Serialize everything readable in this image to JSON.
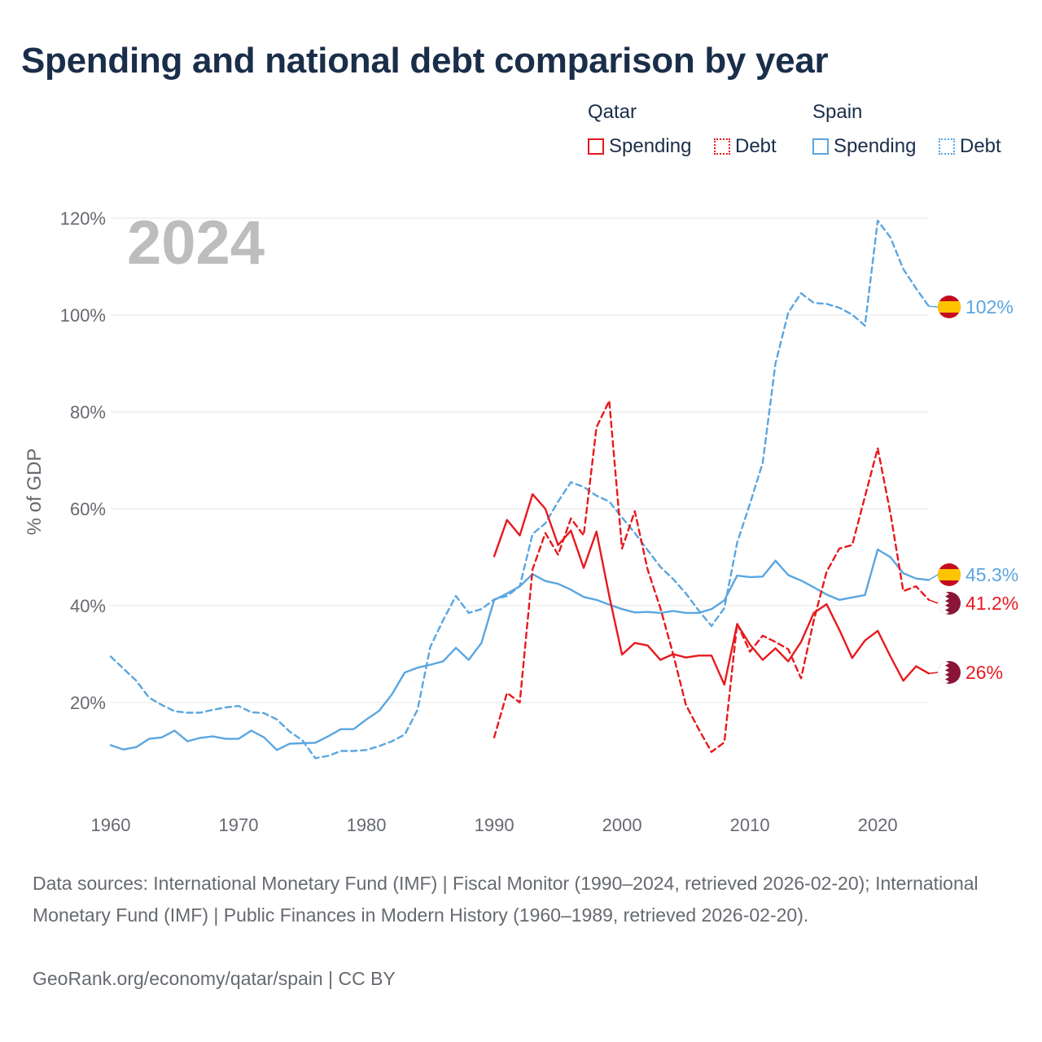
{
  "title": "Spending and national debt comparison by year",
  "legend": {
    "groups": [
      {
        "country": "Qatar",
        "color": "#e8191e",
        "items": [
          {
            "label": "Spending",
            "style": "solid"
          },
          {
            "label": "Debt",
            "style": "dotted"
          }
        ]
      },
      {
        "country": "Spain",
        "color": "#5aa6e0",
        "items": [
          {
            "label": "Spending",
            "style": "solid"
          },
          {
            "label": "Debt",
            "style": "dotted"
          }
        ]
      }
    ]
  },
  "footer": {
    "source": "Data sources: International Monetary Fund (IMF) | Fiscal Monitor (1990–2024, retrieved 2026-02-20); International Monetary Fund (IMF) | Public Finances in Modern History (1960–1989, retrieved 2026-02-20).",
    "credit": "GeoRank.org/economy/qatar/spain | CC BY"
  },
  "chart_data": {
    "type": "line",
    "title": "Spending and national debt comparison by year",
    "year_label": "2024",
    "xlabel": "",
    "ylabel": "% of GDP",
    "xlim": [
      1960,
      2024
    ],
    "ylim": [
      0,
      120
    ],
    "x_ticks": [
      1960,
      1970,
      1980,
      1990,
      2000,
      2010,
      2020
    ],
    "y_ticks": [
      20,
      40,
      60,
      80,
      100,
      120
    ],
    "y_tick_labels": [
      "20%",
      "40%",
      "60%",
      "80%",
      "100%",
      "120%"
    ],
    "grid": true,
    "series": [
      {
        "name": "Spain Debt",
        "country": "Spain",
        "metric": "Debt",
        "color": "#5aa6e0",
        "dash": "dashed",
        "end_label": "102%",
        "flag": "spain",
        "x": [
          1960,
          1961,
          1962,
          1963,
          1964,
          1965,
          1966,
          1967,
          1968,
          1969,
          1970,
          1971,
          1972,
          1973,
          1974,
          1975,
          1976,
          1977,
          1978,
          1979,
          1980,
          1981,
          1982,
          1983,
          1984,
          1985,
          1986,
          1987,
          1988,
          1989,
          1990,
          1991,
          1992,
          1993,
          1994,
          1995,
          1996,
          1997,
          1998,
          1999,
          2000,
          2001,
          2002,
          2003,
          2004,
          2005,
          2006,
          2007,
          2008,
          2009,
          2010,
          2011,
          2012,
          2013,
          2014,
          2015,
          2016,
          2017,
          2018,
          2019,
          2020,
          2021,
          2022,
          2023,
          2024
        ],
        "values": [
          29.5,
          27,
          24.5,
          21,
          19.5,
          18.2,
          17.9,
          17.9,
          18.5,
          19,
          19.3,
          18,
          17.8,
          16.5,
          14,
          12.2,
          8.5,
          9,
          10,
          10,
          10.2,
          11,
          12,
          13.4,
          18.5,
          31.5,
          37,
          42,
          38.5,
          39.3,
          41.3,
          42,
          44,
          54.8,
          57,
          61.5,
          65.5,
          64.5,
          62.7,
          61.5,
          58.2,
          55,
          51.5,
          48,
          45.5,
          42.5,
          39,
          35.8,
          39.5,
          53,
          61,
          69.5,
          90,
          100.5,
          104.5,
          102.5,
          102.3,
          101.5,
          100.1,
          97.8,
          119.5,
          116,
          109.5,
          105.5,
          101.8
        ]
      },
      {
        "name": "Spain Spending",
        "country": "Spain",
        "metric": "Spending",
        "color": "#5aa6e0",
        "dash": "solid",
        "end_label": "45.3%",
        "flag": "spain",
        "x": [
          1960,
          1961,
          1962,
          1963,
          1964,
          1965,
          1966,
          1967,
          1968,
          1969,
          1970,
          1971,
          1972,
          1973,
          1974,
          1975,
          1976,
          1977,
          1978,
          1979,
          1980,
          1981,
          1982,
          1983,
          1984,
          1985,
          1986,
          1987,
          1988,
          1989,
          1990,
          1991,
          1992,
          1993,
          1994,
          1995,
          1996,
          1997,
          1998,
          1999,
          2000,
          2001,
          2002,
          2003,
          2004,
          2005,
          2006,
          2007,
          2008,
          2009,
          2010,
          2011,
          2012,
          2013,
          2014,
          2015,
          2016,
          2017,
          2018,
          2019,
          2020,
          2021,
          2022,
          2023,
          2024
        ],
        "values": [
          11.2,
          10.3,
          10.8,
          12.5,
          12.8,
          14.2,
          12,
          12.7,
          13,
          12.5,
          12.5,
          14.2,
          12.8,
          10.2,
          11.5,
          11.6,
          11.7,
          13,
          14.5,
          14.5,
          16.5,
          18.3,
          21.7,
          26.2,
          27.2,
          27.8,
          28.5,
          31.3,
          28.8,
          32.3,
          41.2,
          42.5,
          44,
          46.5,
          45.1,
          44.5,
          43.3,
          41.8,
          41.2,
          40.2,
          39.3,
          38.6,
          38.7,
          38.5,
          38.9,
          38.5,
          38.5,
          39.3,
          41.1,
          46.2,
          45.9,
          46,
          49.3,
          46.3,
          45.2,
          43.8,
          42.3,
          41.2,
          41.7,
          42.2,
          51.6,
          50,
          46.7,
          45.6,
          45.3
        ]
      },
      {
        "name": "Qatar Spending",
        "country": "Qatar",
        "metric": "Spending",
        "color": "#e8191e",
        "dash": "solid",
        "end_label": "26%",
        "flag": "qatar",
        "x": [
          1990,
          1991,
          1992,
          1993,
          1994,
          1995,
          1996,
          1997,
          1998,
          1999,
          2000,
          2001,
          2002,
          2003,
          2004,
          2005,
          2006,
          2007,
          2008,
          2009,
          2010,
          2011,
          2012,
          2013,
          2014,
          2015,
          2016,
          2017,
          2018,
          2019,
          2020,
          2021,
          2022,
          2023,
          2024
        ],
        "values": [
          50.2,
          57.7,
          54.5,
          63,
          60,
          52.5,
          55.5,
          47.8,
          55.3,
          42,
          29.9,
          32.3,
          31.8,
          28.8,
          30,
          29.3,
          29.7,
          29.7,
          23.7,
          36.2,
          32,
          28.8,
          31.2,
          28.5,
          32.5,
          38.5,
          40.3,
          35,
          29.2,
          32.8,
          34.8,
          29.5,
          24.5,
          27.5,
          26
        ]
      },
      {
        "name": "Qatar Debt",
        "country": "Qatar",
        "metric": "Debt",
        "color": "#e8191e",
        "dash": "dashed",
        "end_label": "41.2%",
        "flag": "qatar",
        "x": [
          1990,
          1991,
          1992,
          1993,
          1994,
          1995,
          1996,
          1997,
          1998,
          1999,
          2000,
          2001,
          2002,
          2003,
          2004,
          2005,
          2006,
          2007,
          2008,
          2009,
          2010,
          2011,
          2012,
          2013,
          2014,
          2015,
          2016,
          2017,
          2018,
          2019,
          2020,
          2021,
          2022,
          2023,
          2024
        ],
        "values": [
          12.8,
          22,
          20,
          47.5,
          55,
          50.5,
          58,
          54.5,
          76.8,
          82.3,
          51.8,
          59.5,
          47.5,
          39.5,
          30,
          19.5,
          14.5,
          9.8,
          11.8,
          36.3,
          30.5,
          33.8,
          32.5,
          31,
          25,
          37,
          47,
          51.8,
          52.5,
          62.5,
          72.5,
          59,
          43,
          44,
          41.2
        ]
      }
    ]
  }
}
